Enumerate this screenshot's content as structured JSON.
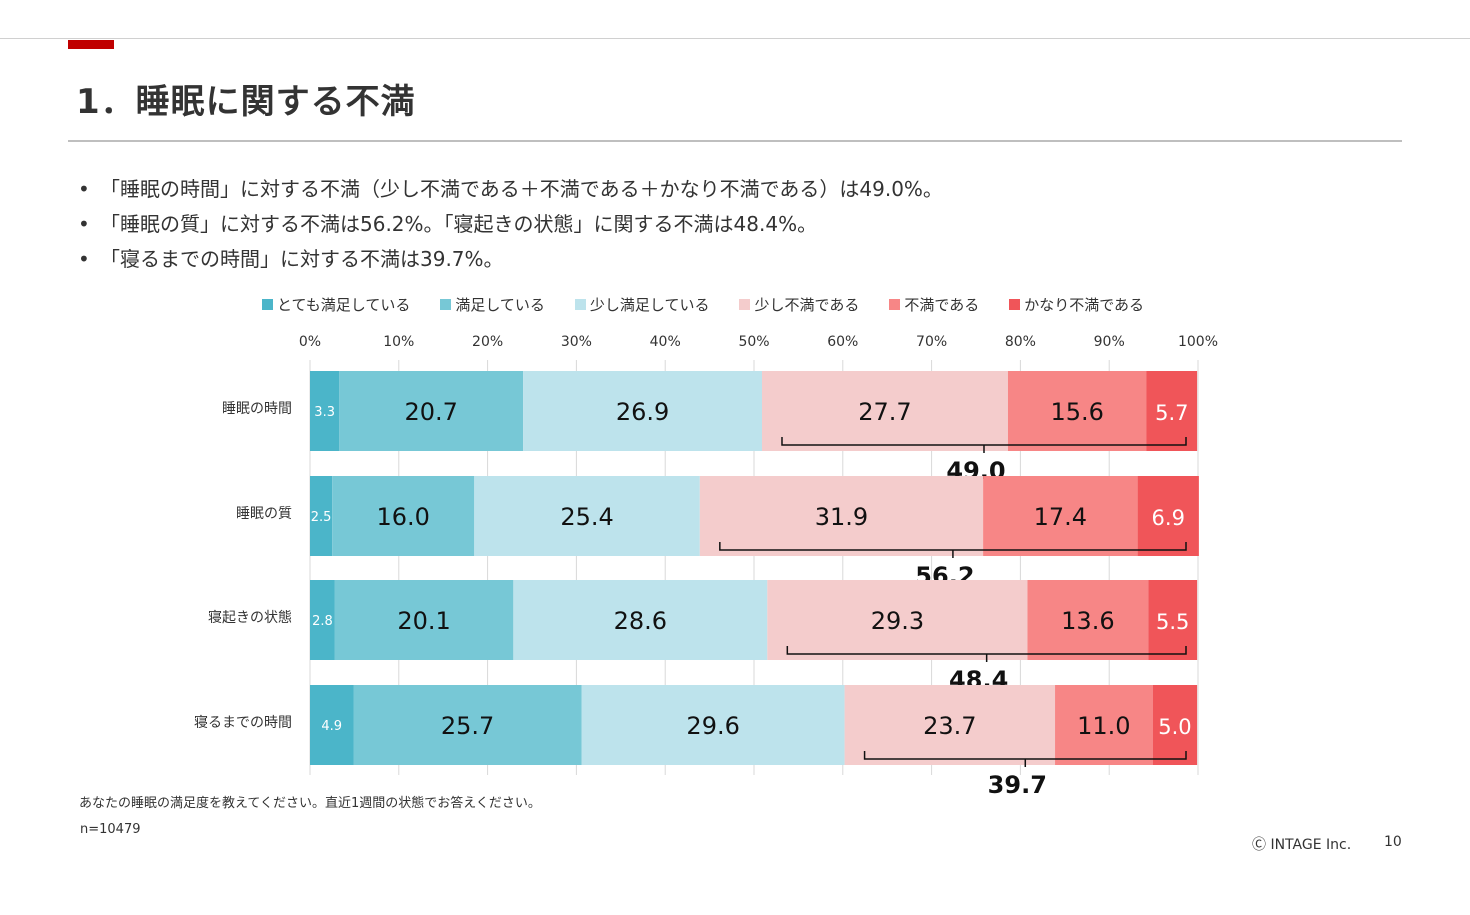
{
  "title": "1．睡眠に関する不満",
  "bullets": [
    "「睡眠の時間」に対する不満（少し不満である＋不満である＋かなり不満である）は49.0%。",
    "「睡眠の質」に対する不満は56.2%。「寝起きの状態」に関する不満は48.4%。",
    "「寝るまでの時間」に対する不満は39.7%。"
  ],
  "bullet_marker": "•",
  "chart_data": {
    "type": "bar",
    "orientation": "horizontal-stacked-100",
    "xlim": [
      0,
      100
    ],
    "x_ticks": [
      "0%",
      "10%",
      "20%",
      "30%",
      "40%",
      "50%",
      "60%",
      "70%",
      "80%",
      "90%",
      "100%"
    ],
    "categories": [
      "睡眠の時間",
      "睡眠の質",
      "寝起きの状態",
      "寝るまでの時間"
    ],
    "series": [
      {
        "name": "とても満足している",
        "color": "#4bb5c9",
        "values": [
          3.3,
          2.5,
          2.8,
          4.9
        ]
      },
      {
        "name": "満足している",
        "color": "#77c8d6",
        "values": [
          20.7,
          16.0,
          20.1,
          25.7
        ]
      },
      {
        "name": "少し満足している",
        "color": "#bde3ec",
        "values": [
          26.9,
          25.4,
          28.6,
          29.6
        ]
      },
      {
        "name": "少し不満である",
        "color": "#f4cccc",
        "values": [
          27.7,
          31.9,
          29.3,
          23.7
        ]
      },
      {
        "name": "不満である",
        "color": "#f78686",
        "values": [
          15.6,
          17.4,
          13.6,
          11.0
        ]
      },
      {
        "name": "かなり不満である",
        "color": "#f05559",
        "values": [
          5.7,
          6.9,
          5.5,
          5.0
        ]
      }
    ],
    "dissatisfied_totals": [
      "49.0",
      "56.2",
      "48.4",
      "39.7"
    ],
    "legend_position": "top",
    "grid": true
  },
  "footer": {
    "question": "あなたの睡眠の満足度を教えてください。直近1週間の状態でお答えください。",
    "n": "n=10479",
    "copyright": "Ⓒ INTAGE Inc.",
    "page_number": "10"
  }
}
